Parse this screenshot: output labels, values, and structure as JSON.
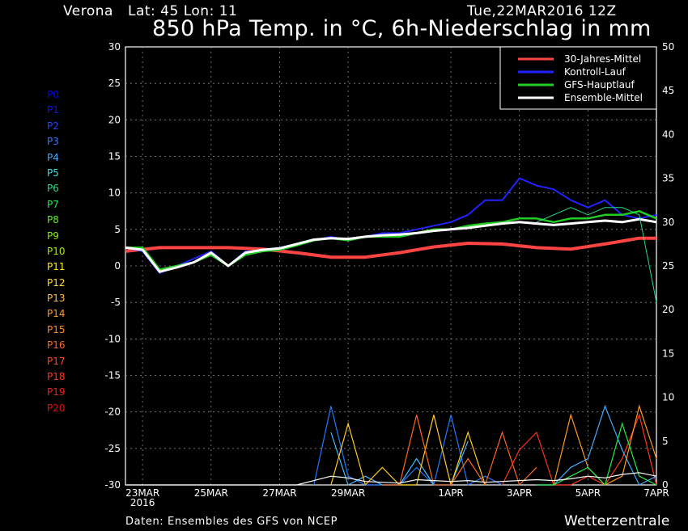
{
  "header": {
    "location": "Verona",
    "coords": "Lat: 45 Lon: 11",
    "run": "Tue,22MAR2016 12Z",
    "title": "850 hPa Temp. in °C, 6h-Niederschlag in mm"
  },
  "members": [
    "P0",
    "P1",
    "P2",
    "P3",
    "P4",
    "P5",
    "P6",
    "P7",
    "P8",
    "P9",
    "P10",
    "P11",
    "P12",
    "P13",
    "P14",
    "P15",
    "P16",
    "P17",
    "P18",
    "P19",
    "P20"
  ],
  "member_colors": [
    "#0000ff",
    "#1111ee",
    "#2244ff",
    "#3377ff",
    "#44aaff",
    "#44dddd",
    "#22dd88",
    "#22ee44",
    "#55ee22",
    "#88ee00",
    "#aaee00",
    "#ffee00",
    "#ffdd33",
    "#ffbb44",
    "#ff9922",
    "#ff8822",
    "#ff6622",
    "#ff4422",
    "#ff3322",
    "#ee2222",
    "#dd1111"
  ],
  "footer": {
    "source": "Daten: Ensembles des GFS von NCEP",
    "brand": "Wetterzentrale"
  },
  "chart_data": {
    "type": "line",
    "x_ticks": [
      {
        "d": 0.5,
        "label": "23MAR",
        "sub": "2016"
      },
      {
        "d": 2.5,
        "label": "25MAR"
      },
      {
        "d": 4.5,
        "label": "27MAR"
      },
      {
        "d": 6.5,
        "label": "29MAR"
      },
      {
        "d": 9.5,
        "label": "1APR"
      },
      {
        "d": 11.5,
        "label": "3APR"
      },
      {
        "d": 13.5,
        "label": "5APR"
      },
      {
        "d": 15.5,
        "label": "7APR"
      }
    ],
    "xlim": [
      0,
      15.5
    ],
    "ylim_left": [
      -30,
      30
    ],
    "ylim_right": [
      0,
      50
    ],
    "left_ticks": [
      30,
      25,
      20,
      15,
      10,
      5,
      0,
      -5,
      -10,
      -15,
      -20,
      -25,
      -30
    ],
    "right_ticks": [
      50,
      45,
      40,
      35,
      30,
      25,
      20,
      15,
      10,
      5,
      0
    ],
    "legend": [
      {
        "name": "30-Jahres-Mittel",
        "color": "#ff4444"
      },
      {
        "name": "Kontroll-Lauf",
        "color": "#2222ff"
      },
      {
        "name": "GFS-Hauptlauf",
        "color": "#22cc22"
      },
      {
        "name": "Ensemble-Mittel",
        "color": "#ffffff"
      }
    ],
    "series": [
      {
        "name": "30-Jahres-Mittel",
        "color": "#ff4444",
        "width": 4,
        "x": [
          0,
          1,
          2,
          3,
          4,
          5,
          6,
          7,
          8,
          9,
          10,
          11,
          12,
          13,
          14,
          15,
          15.5
        ],
        "y": [
          2,
          2.5,
          2.5,
          2.5,
          2.3,
          1.8,
          1.2,
          1.2,
          1.8,
          2.6,
          3.1,
          3.0,
          2.5,
          2.3,
          3.0,
          3.8,
          3.8
        ]
      },
      {
        "name": "Kontroll-Lauf",
        "color": "#2222ff",
        "width": 2,
        "x": [
          0,
          0.5,
          1,
          1.5,
          2,
          2.5,
          3,
          3.5,
          4,
          4.5,
          5,
          5.5,
          6,
          6.5,
          7,
          7.5,
          8,
          8.5,
          9,
          9.5,
          10,
          10.5,
          11,
          11.5,
          12,
          12.5,
          13,
          13.5,
          14,
          14.5,
          15,
          15.5
        ],
        "y": [
          2.5,
          2,
          -1,
          0,
          1,
          2,
          0,
          2,
          2,
          2.5,
          3,
          3.5,
          4,
          3.5,
          4,
          4.5,
          4.5,
          5,
          5.5,
          6,
          7,
          9,
          9,
          12,
          11,
          10.5,
          9,
          8,
          9,
          7,
          6.5,
          7
        ]
      },
      {
        "name": "GFS-Hauptlauf",
        "color": "#22cc22",
        "width": 2.5,
        "x": [
          0,
          0.5,
          1,
          1.5,
          2,
          2.5,
          3,
          3.5,
          4,
          4.5,
          5,
          5.5,
          6,
          6.5,
          7,
          7.5,
          8,
          8.5,
          9,
          9.5,
          10,
          10.5,
          11,
          11.5,
          12,
          12.5,
          13,
          13.5,
          14,
          14.5,
          15,
          15.5
        ],
        "y": [
          2.5,
          2.5,
          -0.5,
          0,
          0.5,
          1.5,
          0,
          1.5,
          2,
          2.2,
          2.8,
          3.5,
          3.8,
          3.5,
          4,
          4,
          4,
          4.5,
          5,
          5,
          5.5,
          5.8,
          6,
          6.5,
          6.5,
          6,
          6.5,
          6.5,
          7,
          7,
          7.5,
          6.5
        ]
      },
      {
        "name": "Ensemble-Mittel",
        "color": "#ffffff",
        "width": 3,
        "x": [
          0,
          0.5,
          1,
          1.5,
          2,
          2.5,
          3,
          3.5,
          4,
          4.5,
          5,
          5.5,
          6,
          6.5,
          7,
          7.5,
          8,
          8.5,
          9,
          9.5,
          10,
          10.5,
          11,
          11.5,
          12,
          12.5,
          13,
          13.5,
          14,
          14.5,
          15,
          15.5
        ],
        "y": [
          2.5,
          2.2,
          -0.8,
          -0.2,
          0.5,
          1.8,
          0,
          1.8,
          2.2,
          2.4,
          3,
          3.6,
          3.8,
          3.7,
          4,
          4.2,
          4.3,
          4.5,
          4.8,
          5,
          5.2,
          5.5,
          5.8,
          6,
          5.8,
          5.6,
          5.8,
          6,
          6.2,
          6,
          6.4,
          6
        ]
      },
      {
        "name": "P6",
        "color": "#22dd88",
        "width": 1,
        "x": [
          12,
          12.5,
          13,
          13.5,
          14,
          14.5,
          15,
          15.5
        ],
        "y": [
          6,
          7,
          8,
          7,
          8,
          8,
          7,
          -5
        ]
      }
    ],
    "precip_series": [
      {
        "color": "#2277ff",
        "x": [
          5.5,
          6,
          6.5,
          7,
          7.5,
          8,
          8.5,
          9,
          9.5,
          10,
          10.5,
          11
        ],
        "y": [
          0,
          9,
          1,
          0,
          0,
          0,
          2,
          0,
          8,
          0,
          1,
          0
        ]
      },
      {
        "color": "#44bbff",
        "x": [
          6,
          6.5,
          7,
          7.5,
          8,
          8.5,
          9,
          9.5,
          10
        ],
        "y": [
          6,
          0,
          1,
          0,
          0,
          3,
          0,
          0,
          5
        ]
      },
      {
        "color": "#ffcc22",
        "x": [
          6,
          6.5,
          7,
          7.5,
          8,
          8.5,
          9,
          9.5,
          10,
          10.5
        ],
        "y": [
          0,
          7,
          0,
          2,
          0,
          0,
          8,
          0,
          6,
          0
        ]
      },
      {
        "color": "#ff6622",
        "x": [
          7.5,
          8,
          8.5,
          9,
          9.5,
          10,
          10.5,
          11,
          11.5,
          12
        ],
        "y": [
          0,
          0,
          8,
          0,
          0,
          3,
          0,
          6,
          0,
          2
        ]
      },
      {
        "color": "#ff3322",
        "x": [
          11,
          11.5,
          12,
          12.5,
          13,
          13.5,
          14,
          14.5,
          15,
          15.5
        ],
        "y": [
          0,
          4,
          6,
          0,
          0,
          1,
          0,
          3,
          8,
          0
        ]
      },
      {
        "color": "#44aaff",
        "x": [
          12,
          12.5,
          13,
          13.5,
          14,
          14.5,
          15,
          15.5
        ],
        "y": [
          0,
          0,
          2,
          3,
          9,
          4,
          0,
          1
        ]
      },
      {
        "color": "#ff9922",
        "x": [
          12.5,
          13,
          13.5,
          14,
          14.5,
          15,
          15.5
        ],
        "y": [
          0,
          8,
          2,
          0,
          1,
          9,
          3
        ]
      },
      {
        "color": "#22ee44",
        "x": [
          12,
          12.5,
          13,
          13.5,
          14,
          14.5,
          15,
          15.5
        ],
        "y": [
          0,
          0,
          1,
          2,
          0,
          7,
          1,
          0
        ]
      },
      {
        "color": "#ffffff",
        "x": [
          0,
          2,
          4,
          5,
          5.5,
          6,
          6.5,
          7,
          7.5,
          8,
          8.5,
          9,
          9.5,
          10,
          10.5,
          11,
          11.5,
          12,
          12.5,
          13,
          13.5,
          14,
          14.5,
          15,
          15.5
        ],
        "y": [
          0,
          0,
          0,
          0,
          0.5,
          1,
          0.8,
          0.4,
          0.3,
          0.2,
          0.6,
          0.5,
          0.4,
          0.5,
          0.3,
          0.4,
          0.5,
          0.6,
          0.5,
          0.7,
          1,
          0.8,
          1.2,
          1.4,
          1
        ]
      }
    ]
  }
}
